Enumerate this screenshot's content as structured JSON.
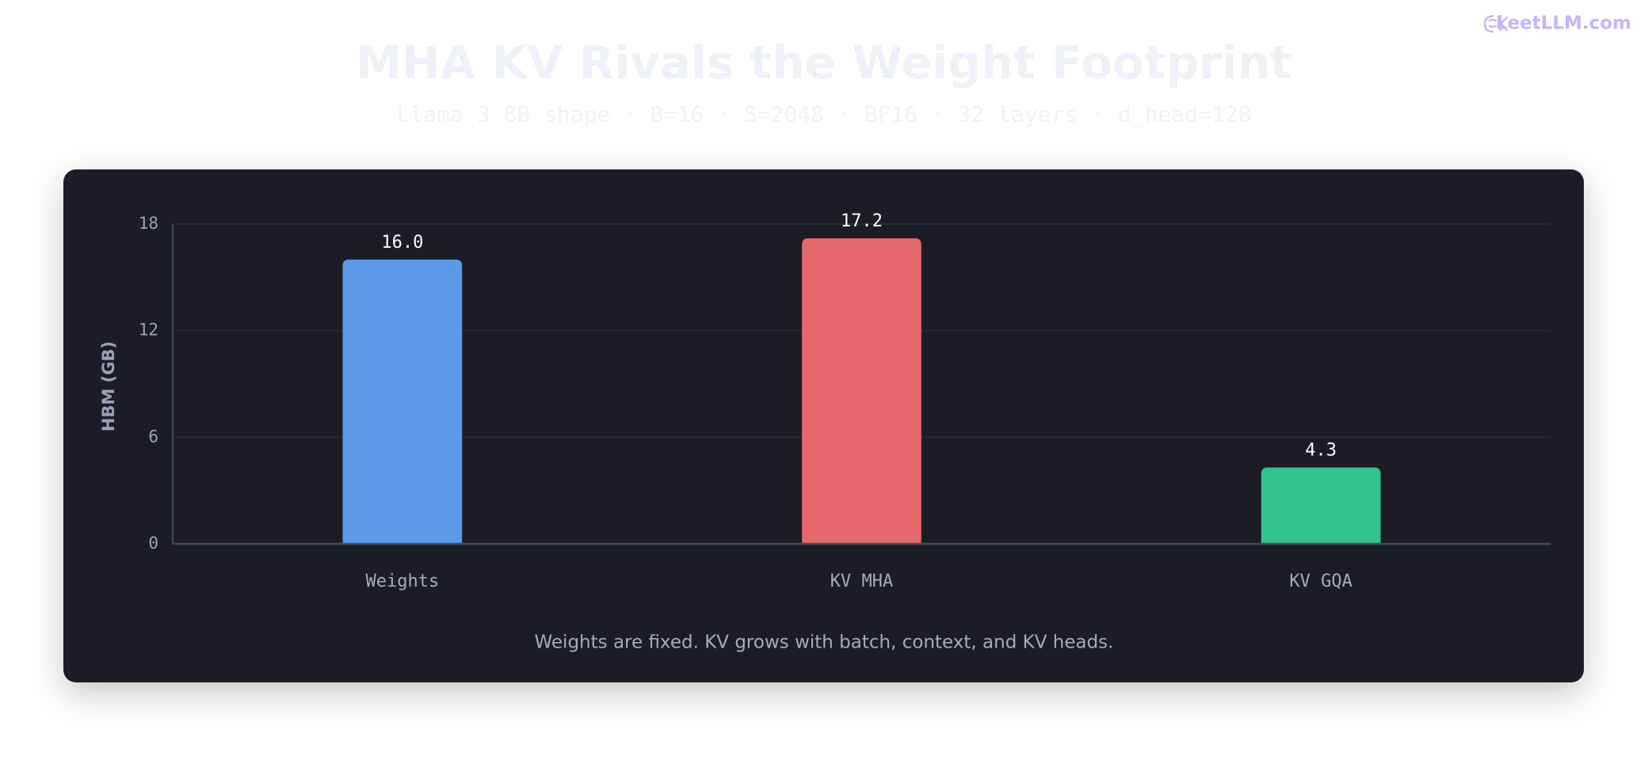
{
  "brand": "LeetLLM.com",
  "chart_data": {
    "type": "bar",
    "title": "MHA KV Rivals the Weight Footprint",
    "subtitle": "Llama 3 8B shape · B=16 · S=2048 · BF16 · 32 layers · d_head=128",
    "y_label": "HBM (GB)",
    "caption": "Weights are fixed. KV grows with batch, context, and KV heads.",
    "categories": [
      "Weights",
      "KV MHA",
      "KV GQA"
    ],
    "values": [
      16,
      17.2,
      4.3
    ],
    "value_labels": [
      "16.0",
      "17.2",
      "4.3"
    ],
    "colors": [
      "#5a9ae8",
      "#e5676b",
      "#31c48d"
    ],
    "ylim": [
      0,
      18
    ],
    "yticks": [
      0,
      6,
      12,
      18
    ],
    "grid": true
  }
}
